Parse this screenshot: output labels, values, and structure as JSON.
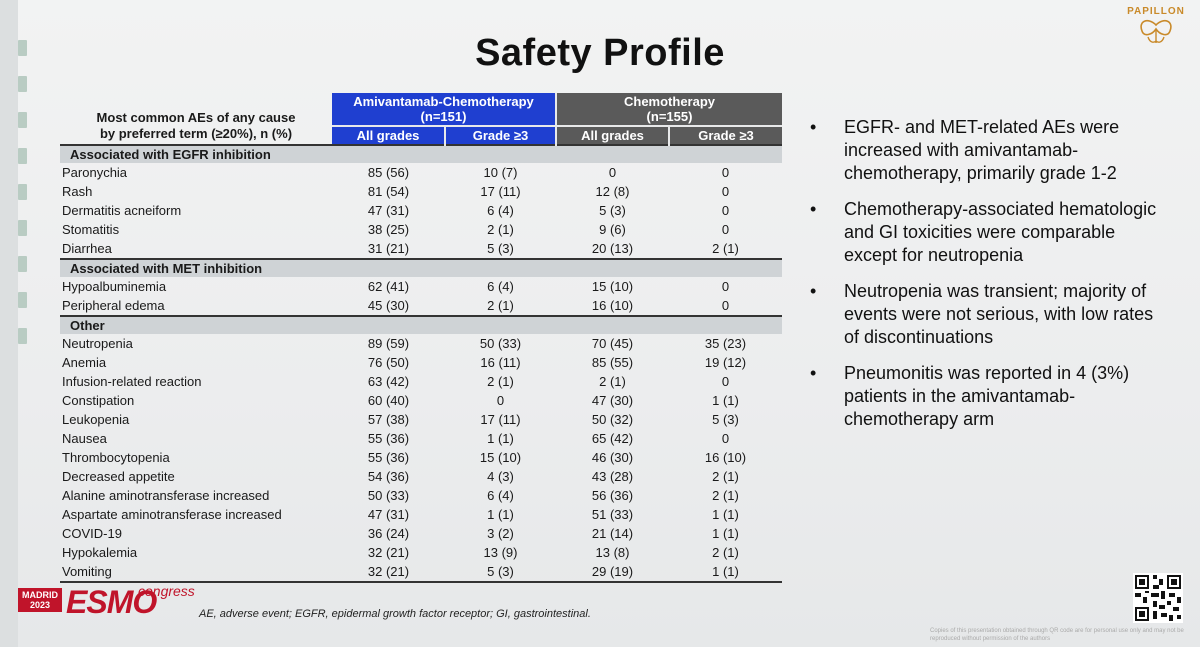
{
  "slide": {
    "title": "Safety Profile",
    "logo_text": "PAPILLON"
  },
  "table": {
    "row_header_line1": "Most common AEs of any cause",
    "row_header_line2": "by preferred term (≥20%), n (%)",
    "arm1_line1": "Amivantamab-Chemotherapy",
    "arm1_line2": "(n=151)",
    "arm2_line1": "Chemotherapy",
    "arm2_line2": "(n=155)",
    "sub_all": "All grades",
    "sub_g3": "Grade ≥3",
    "section_egfr": "Associated with EGFR inhibition",
    "section_met": "Associated with MET inhibition",
    "section_other": "Other",
    "egfr_rows": [
      {
        "ae": "Paronychia",
        "a_all": "85 (56)",
        "a_g3": "10 (7)",
        "c_all": "0",
        "c_g3": "0"
      },
      {
        "ae": "Rash",
        "a_all": "81 (54)",
        "a_g3": "17 (11)",
        "c_all": "12 (8)",
        "c_g3": "0"
      },
      {
        "ae": "Dermatitis acneiform",
        "a_all": "47 (31)",
        "a_g3": "6 (4)",
        "c_all": "5 (3)",
        "c_g3": "0"
      },
      {
        "ae": "Stomatitis",
        "a_all": "38 (25)",
        "a_g3": "2 (1)",
        "c_all": "9 (6)",
        "c_g3": "0"
      },
      {
        "ae": "Diarrhea",
        "a_all": "31 (21)",
        "a_g3": "5 (3)",
        "c_all": "20 (13)",
        "c_g3": "2 (1)"
      }
    ],
    "met_rows": [
      {
        "ae": "Hypoalbuminemia",
        "a_all": "62 (41)",
        "a_g3": "6 (4)",
        "c_all": "15 (10)",
        "c_g3": "0"
      },
      {
        "ae": "Peripheral edema",
        "a_all": "45 (30)",
        "a_g3": "2 (1)",
        "c_all": "16 (10)",
        "c_g3": "0"
      }
    ],
    "other_rows": [
      {
        "ae": "Neutropenia",
        "a_all": "89 (59)",
        "a_g3": "50 (33)",
        "c_all": "70 (45)",
        "c_g3": "35 (23)"
      },
      {
        "ae": "Anemia",
        "a_all": "76 (50)",
        "a_g3": "16 (11)",
        "c_all": "85 (55)",
        "c_g3": "19 (12)"
      },
      {
        "ae": "Infusion-related reaction",
        "a_all": "63 (42)",
        "a_g3": "2 (1)",
        "c_all": "2 (1)",
        "c_g3": "0"
      },
      {
        "ae": "Constipation",
        "a_all": "60 (40)",
        "a_g3": "0",
        "c_all": "47 (30)",
        "c_g3": "1 (1)"
      },
      {
        "ae": "Leukopenia",
        "a_all": "57 (38)",
        "a_g3": "17 (11)",
        "c_all": "50 (32)",
        "c_g3": "5 (3)"
      },
      {
        "ae": "Nausea",
        "a_all": "55 (36)",
        "a_g3": "1 (1)",
        "c_all": "65 (42)",
        "c_g3": "0"
      },
      {
        "ae": "Thrombocytopenia",
        "a_all": "55 (36)",
        "a_g3": "15 (10)",
        "c_all": "46 (30)",
        "c_g3": "16 (10)"
      },
      {
        "ae": "Decreased appetite",
        "a_all": "54 (36)",
        "a_g3": "4 (3)",
        "c_all": "43 (28)",
        "c_g3": "2 (1)"
      },
      {
        "ae": "Alanine aminotransferase increased",
        "a_all": "50 (33)",
        "a_g3": "6 (4)",
        "c_all": "56 (36)",
        "c_g3": "2 (1)"
      },
      {
        "ae": "Aspartate aminotransferase increased",
        "a_all": "47 (31)",
        "a_g3": "1 (1)",
        "c_all": "51 (33)",
        "c_g3": "1 (1)"
      },
      {
        "ae": "COVID-19",
        "a_all": "36 (24)",
        "a_g3": "3 (2)",
        "c_all": "21 (14)",
        "c_g3": "1 (1)"
      },
      {
        "ae": "Hypokalemia",
        "a_all": "32 (21)",
        "a_g3": "13 (9)",
        "c_all": "13 (8)",
        "c_g3": "2 (1)"
      },
      {
        "ae": "Vomiting",
        "a_all": "32 (21)",
        "a_g3": "5 (3)",
        "c_all": "29 (19)",
        "c_g3": "1 (1)"
      }
    ]
  },
  "bullets": [
    "EGFR- and MET-related AEs were increased with amivantamab-chemotherapy, primarily grade 1-2",
    "Chemotherapy-associated hematologic and GI toxicities were comparable except for neutropenia",
    "Neutropenia was transient; majority of events were not serious, with low rates of discontinuations",
    "Pneumonitis was reported in 4 (3%) patients in the amivantamab-chemotherapy arm"
  ],
  "footer": {
    "city": "MADRID",
    "year": "2023",
    "esmo": "ESMO",
    "congress": "congress",
    "footnote": "AE, adverse event; EGFR, epidermal growth factor receptor; GI, gastrointestinal.",
    "fineprint": "Copies of this presentation obtained through QR code are for personal use only and may not be reproduced without permission of the authors"
  },
  "colors": {
    "amivantamab_header": "#1f3fd0",
    "chemotherapy_header": "#5a5a5a",
    "section_band": "#cfd3d6",
    "esmo_red": "#c0142a"
  }
}
